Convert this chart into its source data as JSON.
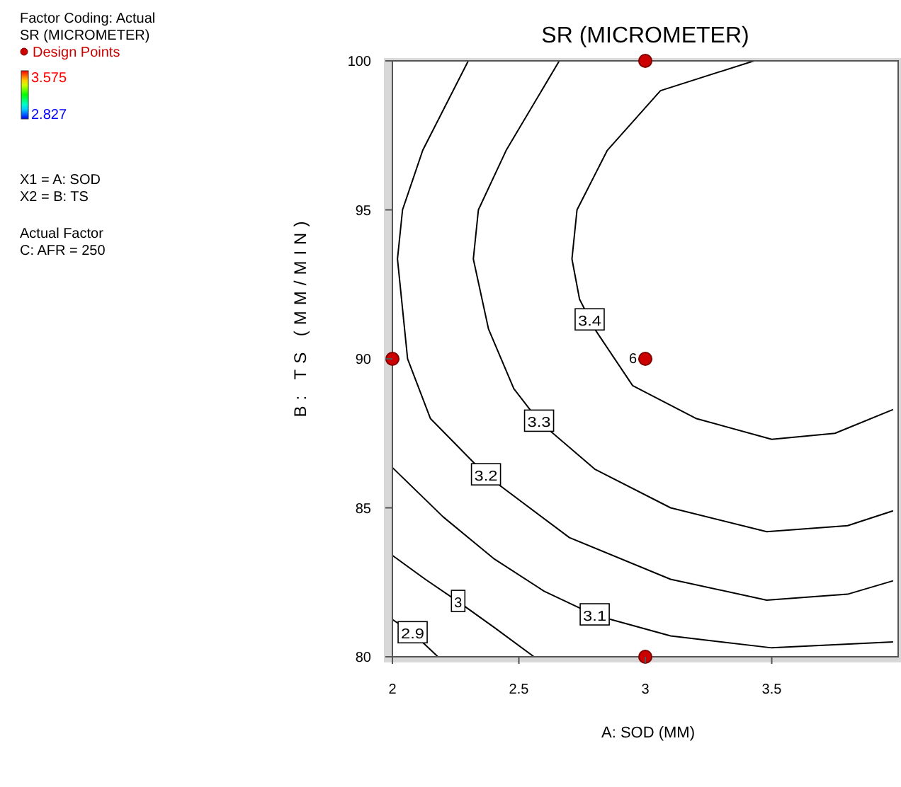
{
  "chart_data": {
    "type": "line",
    "title": "SR (MICROMETER)",
    "xlabel": "A: SOD (MM)",
    "ylabel": "B: TS (MM/MIN)",
    "clabel": "SR (MICROMETER)",
    "xlim": [
      2,
      4
    ],
    "xticks": [
      2,
      2.5,
      3,
      3.5
    ],
    "ylim": [
      80,
      100
    ],
    "yticks": [
      80,
      85,
      90,
      95,
      100
    ],
    "grid": false,
    "legend": "left",
    "clim": [
      2.827,
      3.575
    ],
    "cticks": [
      2.827,
      3.575
    ],
    "series": [
      {
        "type": "line",
        "color": "#000000",
        "x": [
          3.43,
          3.06,
          2.85,
          2.73,
          2.71,
          2.74,
          2.8,
          2.95,
          3.2,
          3.5,
          3.75,
          3.98
        ],
        "values": [
          100,
          99,
          97,
          95,
          93.35,
          92,
          91,
          89.1,
          88,
          87.3,
          87.5,
          88.3
        ]
      },
      {
        "type": "line",
        "color": "#000000",
        "x": [
          2.66,
          2.45,
          2.34,
          2.32,
          2.38,
          2.48,
          2.58,
          2.8,
          3.1,
          3.48,
          3.8,
          3.98
        ],
        "values": [
          100,
          97,
          95,
          93.35,
          91,
          89,
          87.9,
          86.3,
          85,
          84.2,
          84.4,
          84.9
        ]
      },
      {
        "type": "line",
        "color": "#000000",
        "x": [
          2.3,
          2.12,
          2.04,
          2.02,
          2.06,
          2.15,
          2.37,
          2.7,
          3.1,
          3.48,
          3.8,
          3.98
        ],
        "values": [
          100,
          97,
          95,
          93.35,
          90,
          88,
          86.1,
          84,
          82.6,
          81.9,
          82.1,
          82.55
        ]
      },
      {
        "type": "line",
        "color": "#000000",
        "x": [
          2,
          2.2,
          2.4,
          2.6,
          2.8,
          3.1,
          3.5,
          3.98
        ],
        "values": [
          86.35,
          84.7,
          83.3,
          82.2,
          81.4,
          80.7,
          80.3,
          80.5
        ]
      },
      {
        "type": "line",
        "color": "#000000",
        "x": [
          2,
          2.13,
          2.26,
          2.4,
          2.56
        ],
        "values": [
          83.4,
          82.6,
          81.85,
          81,
          80
        ]
      },
      {
        "type": "line",
        "color": "#000000",
        "x": [
          2,
          2.08,
          2.18
        ],
        "values": [
          81.25,
          80.8,
          80
        ]
      },
      {
        "type": "scatter",
        "name": "Design Points",
        "color": "#cc0000",
        "marker": "circle",
        "x": [
          2,
          3,
          3,
          3
        ],
        "values": [
          90,
          90,
          100,
          80
        ]
      }
    ],
    "annotations": [
      "Factor Coding: Actual",
      "X1 = A: SOD",
      "X2 = B: TS",
      "Actual Factor",
      "C: AFR = 250",
      {
        "text": "3.4",
        "x": 2.78,
        "y": 91.3
      },
      {
        "text": "3.3",
        "x": 2.58,
        "y": 87.9
      },
      {
        "text": "3.2",
        "x": 2.37,
        "y": 86.1
      },
      {
        "text": "3.1",
        "x": 2.8,
        "y": 81.4
      },
      {
        "text": "3",
        "x": 2.26,
        "y": 81.85
      },
      {
        "text": "2.9",
        "x": 2.08,
        "y": 80.8
      },
      {
        "text": "6",
        "x": 3,
        "y": 90
      }
    ]
  }
}
